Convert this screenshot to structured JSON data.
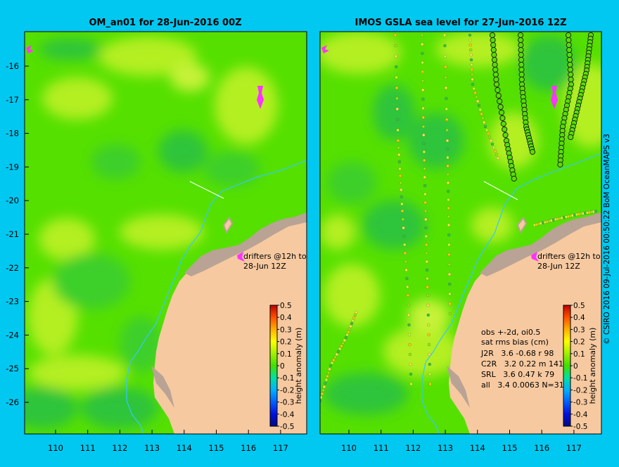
{
  "colors": {
    "background": "#00c8f0",
    "land": "#f6c9a0",
    "reef_land": "#b9a394",
    "ocean_mid": "#55e000",
    "ocean_low": "#2fc43a",
    "ocean_high": "#b4ef20",
    "coast_line": "#33c9ff",
    "drifter": "#ff33ff"
  },
  "left_panel": {
    "title": "OM_an01 for 28-Jun-2016 00Z",
    "drifter_label_line1": "drifters @12h to",
    "drifter_label_line2": "28-Jun 12Z"
  },
  "right_panel": {
    "title": "IMOS GSLA sea level  for 27-Jun-2016 12Z",
    "drifter_label_line1": "drifters @12h to",
    "drifter_label_line2": "28-Jun 12Z",
    "stats_header_1": "obs +-2d, oi0.5",
    "stats_header_2": "sat rms bias (cm)",
    "stats_rows": [
      "J2R   3.6 -0.68 r 98",
      "C2R   3.2 0.22 m 141",
      "SRL   3.6 0.47 k 79",
      "all   3.4 0.0063 N=318"
    ]
  },
  "axes": {
    "x_ticks": [
      "110",
      "111",
      "112",
      "113",
      "114",
      "115",
      "116",
      "117"
    ],
    "y_ticks": [
      "-16",
      "-17",
      "-18",
      "-19",
      "-20",
      "-21",
      "-22",
      "-23",
      "-24",
      "-25",
      "-26"
    ]
  },
  "colorbar": {
    "label": "height anomaly (m)",
    "ticks": [
      "0.5",
      "0.4",
      "0.3",
      "0.2",
      "0.1",
      "0",
      "-0.1",
      "-0.2",
      "-0.3",
      "-0.4",
      "-0.5"
    ]
  },
  "credit": "© CSIRO 2016   09-Jul-2016 00:50:22 BoM OceanMAPS v3"
}
